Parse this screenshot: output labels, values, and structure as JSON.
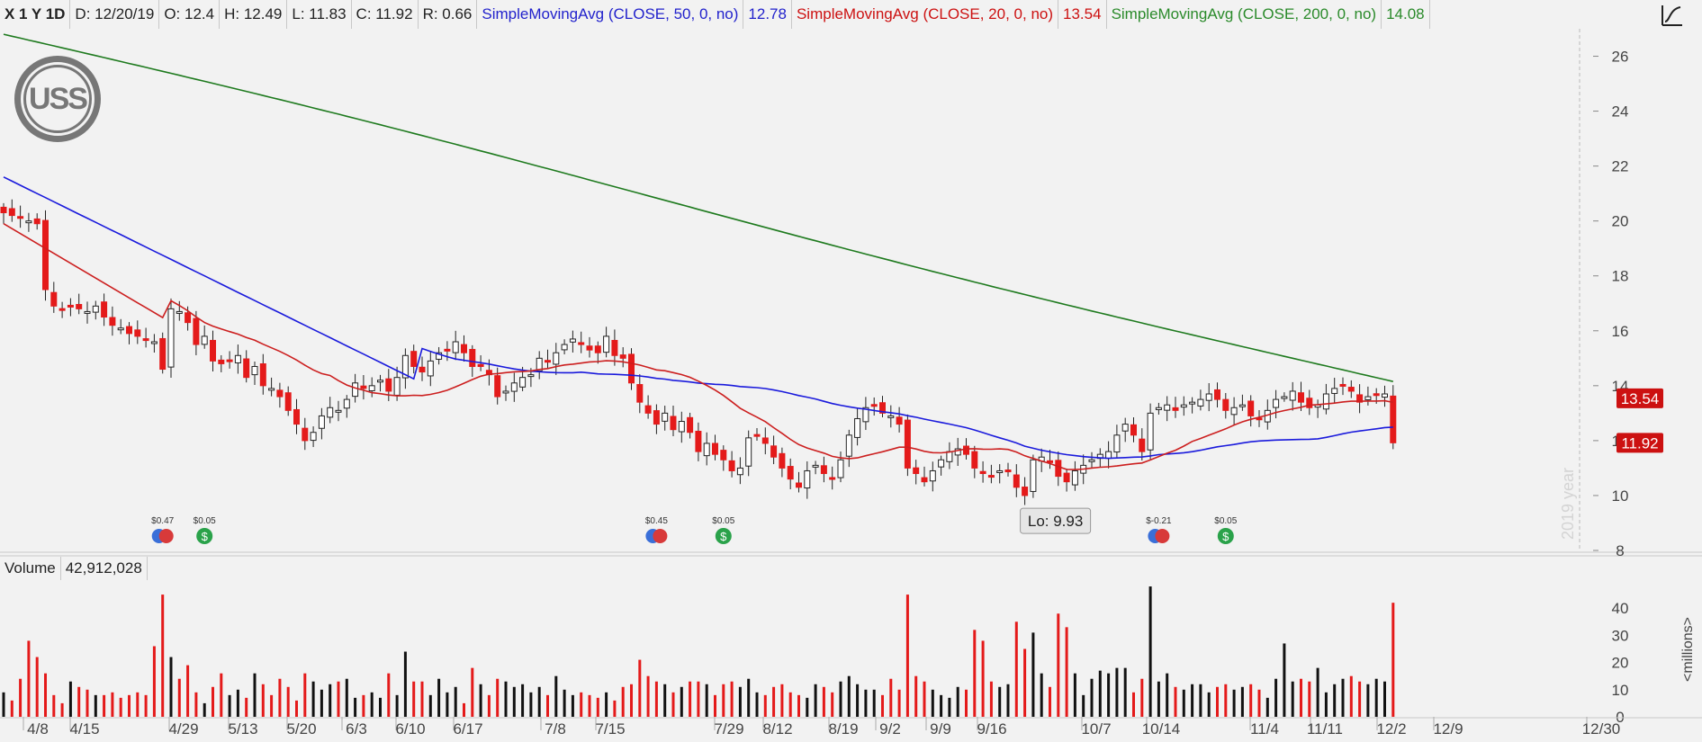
{
  "header": {
    "symbol": "X 1 Y 1D",
    "date": "D: 12/20/19",
    "open": "O: 12.4",
    "high": "H: 12.49",
    "low": "L: 11.83",
    "close": "C: 11.92",
    "range": "R: 0.66",
    "sma50_label": "SimpleMovingAvg (CLOSE, 50, 0, no)",
    "sma50_value": "12.78",
    "sma20_label": "SimpleMovingAvg (CLOSE, 20, 0, no)",
    "sma20_value": "13.54",
    "sma200_label": "SimpleMovingAvg (CLOSE, 200, 0, no)",
    "sma200_value": "14.08"
  },
  "volume_header": {
    "label": "Volume",
    "value": "42,912,028"
  },
  "logo_text": "USS",
  "colors": {
    "up": "#ffffff",
    "down": "#e41a1a",
    "sma50": "#1a1adc",
    "sma20": "#cc1f1f",
    "sma200": "#1e7a1e",
    "vol_black": "#111111",
    "vol_red": "#e41a1a"
  },
  "chart_data": {
    "type": "candlestick",
    "price_axis": {
      "ylim": [
        8,
        27
      ],
      "ticks": [
        "8",
        "10",
        "12",
        "14",
        "16",
        "18",
        "20",
        "22",
        "24",
        "26"
      ]
    },
    "volume_axis": {
      "ylim": [
        0,
        50
      ],
      "ticks": [
        "0",
        "10",
        "20",
        "30",
        "40"
      ],
      "unit_label": "<millions>"
    },
    "x_ticks": [
      "4/8",
      "4/15",
      "4/29",
      "5/13",
      "5/20",
      "6/3",
      "6/10",
      "6/17",
      "7/8",
      "7/15",
      "7/29",
      "8/12",
      "8/19",
      "9/2",
      "9/9",
      "9/16",
      "10/7",
      "10/14",
      "11/4",
      "11/11",
      "12/2",
      "12/9",
      "12/30"
    ],
    "year_watermark": "2019 year",
    "price_badges": [
      {
        "text": "13.54",
        "value": 13.54
      },
      {
        "text": "11.92",
        "value": 11.92
      }
    ],
    "low_marker": {
      "text": "Lo: 9.93",
      "value": 9.93
    },
    "events": [
      {
        "label": "$0.47",
        "kind": "earnings",
        "index": 19
      },
      {
        "label": "$0.05",
        "kind": "dividend",
        "index": 24
      },
      {
        "label": "$0.45",
        "kind": "earnings",
        "index": 78
      },
      {
        "label": "$0.05",
        "kind": "dividend",
        "index": 86
      },
      {
        "label": "$-0.21",
        "kind": "earnings",
        "index": 138
      },
      {
        "label": "$0.05",
        "kind": "dividend",
        "index": 146
      }
    ],
    "closes": [
      20.3,
      20.2,
      20.1,
      20.0,
      19.9,
      17.5,
      16.9,
      16.8,
      16.9,
      16.8,
      16.7,
      16.9,
      16.5,
      16.2,
      16.1,
      15.9,
      15.8,
      15.7,
      15.6,
      14.6,
      16.8,
      16.7,
      16.3,
      15.5,
      15.8,
      14.9,
      14.8,
      14.9,
      15.1,
      14.3,
      14.7,
      14.0,
      13.9,
      13.6,
      13.1,
      12.6,
      12.0,
      12.3,
      12.9,
      13.2,
      13.1,
      13.5,
      14.1,
      13.9,
      14.0,
      14.2,
      13.8,
      14.3,
      15.1,
      14.7,
      14.5,
      14.9,
      15.2,
      15.3,
      15.6,
      15.2,
      14.7,
      14.7,
      14.4,
      13.6,
      13.8,
      14.1,
      14.3,
      14.4,
      15.0,
      14.9,
      15.2,
      15.5,
      15.7,
      15.5,
      15.3,
      15.2,
      15.8,
      15.1,
      15.0,
      14.1,
      13.4,
      13.0,
      12.6,
      13.0,
      12.4,
      12.7,
      12.3,
      11.6,
      11.9,
      11.5,
      11.3,
      10.9,
      11.0,
      12.1,
      12.2,
      11.9,
      11.4,
      11.0,
      10.6,
      10.3,
      10.9,
      11.1,
      10.8,
      10.6,
      11.3,
      12.2,
      12.8,
      13.2,
      13.3,
      13.0,
      12.9,
      12.6,
      11.0,
      10.8,
      10.5,
      10.9,
      11.3,
      11.6,
      11.7,
      11.5,
      11.0,
      10.8,
      10.7,
      10.9,
      10.9,
      10.3,
      10.0,
      11.3,
      11.4,
      11.2,
      10.7,
      10.5,
      10.9,
      11.1,
      11.3,
      11.5,
      11.6,
      12.2,
      12.6,
      12.2,
      11.6,
      13.0,
      13.2,
      13.3,
      13.1,
      13.3,
      13.4,
      13.5,
      13.7,
      13.5,
      13.1,
      13.2,
      13.3,
      12.9,
      12.8,
      13.1,
      13.5,
      13.6,
      13.8,
      13.4,
      13.2,
      13.3,
      13.7,
      13.9,
      14.0,
      13.8,
      13.4,
      13.6,
      13.7,
      13.7,
      11.92
    ],
    "volume": [
      9,
      6,
      14,
      28,
      22,
      16,
      8,
      5,
      13,
      11,
      10,
      8,
      8,
      9,
      7,
      8,
      9,
      8,
      26,
      45,
      22,
      14,
      19,
      9,
      5,
      11,
      16,
      8,
      10,
      7,
      16,
      12,
      8,
      14,
      11,
      6,
      16,
      13,
      10,
      12,
      13,
      14,
      7,
      8,
      9,
      7,
      16,
      8,
      24,
      13,
      13,
      8,
      14,
      9,
      11,
      5,
      18,
      12,
      8,
      14,
      13,
      11,
      12,
      9,
      11,
      8,
      15,
      10,
      8,
      9,
      8,
      7,
      9,
      6,
      11,
      12,
      21,
      15,
      13,
      12,
      9,
      11,
      13,
      13,
      12,
      8,
      12,
      13,
      11,
      14,
      9,
      8,
      11,
      12,
      9,
      8,
      7,
      12,
      11,
      9,
      13,
      15,
      12,
      10,
      10,
      8,
      14,
      10,
      45,
      15,
      13,
      10,
      8,
      7,
      11,
      10,
      32,
      28,
      13,
      11,
      12,
      35,
      25,
      31,
      16,
      11,
      38,
      33,
      16,
      8,
      14,
      17,
      16,
      18,
      18,
      9,
      14,
      48,
      13,
      16,
      11,
      10,
      12,
      12,
      9,
      11,
      12,
      10,
      11,
      12,
      10,
      7,
      14,
      27,
      13,
      14,
      13,
      18,
      9,
      12,
      14,
      15,
      13,
      12,
      14,
      13,
      42
    ]
  }
}
